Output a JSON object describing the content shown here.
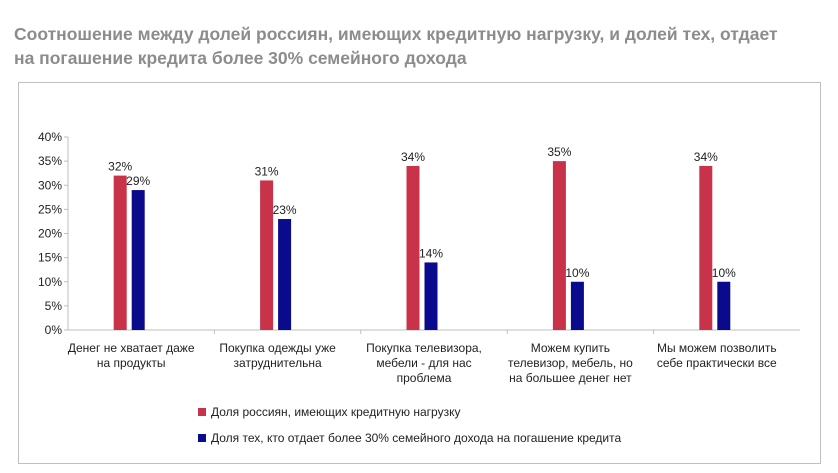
{
  "title": {
    "line1": "Соотношение между долей россиян, имеющих кредитную нагрузку, и долей тех, отдает",
    "line2": "на погашение кредита более 30% семейного дохода"
  },
  "colors": {
    "series1": "#c8334a",
    "series2": "#0a0a8c",
    "axis": "#bfbfbf",
    "text": "#222222"
  },
  "chart_data": {
    "type": "bar",
    "categories": [
      [
        "Денег не хватает даже",
        "на продукты"
      ],
      [
        "Покупка одежды уже",
        "затруднительна"
      ],
      [
        "Покупка телевизора,",
        "мебели - для нас",
        "проблема"
      ],
      [
        "Можем купить",
        "телевизор, мебель, но",
        "на большее денег нет"
      ],
      [
        "Мы можем позволить",
        "себе практически все"
      ]
    ],
    "series": [
      {
        "name": "Доля россиян, имеющих кредитную нагрузку",
        "values": [
          32,
          31,
          34,
          35,
          34
        ],
        "labels": [
          "32%",
          "31%",
          "34%",
          "35%",
          "34%"
        ]
      },
      {
        "name": "Доля тех, кто отдает более 30% семейного дохода на погашение кредита",
        "values": [
          29,
          23,
          14,
          10,
          10
        ],
        "labels": [
          "29%",
          "23%",
          "14%",
          "10%",
          "10%"
        ]
      }
    ],
    "yticks": [
      0,
      5,
      10,
      15,
      20,
      25,
      30,
      35,
      40
    ],
    "ytick_labels": [
      "0%",
      "5%",
      "10%",
      "15%",
      "20%",
      "25%",
      "30%",
      "35%",
      "40%"
    ],
    "ylim": [
      0,
      40
    ],
    "grid": false,
    "legend_position": "bottom"
  }
}
